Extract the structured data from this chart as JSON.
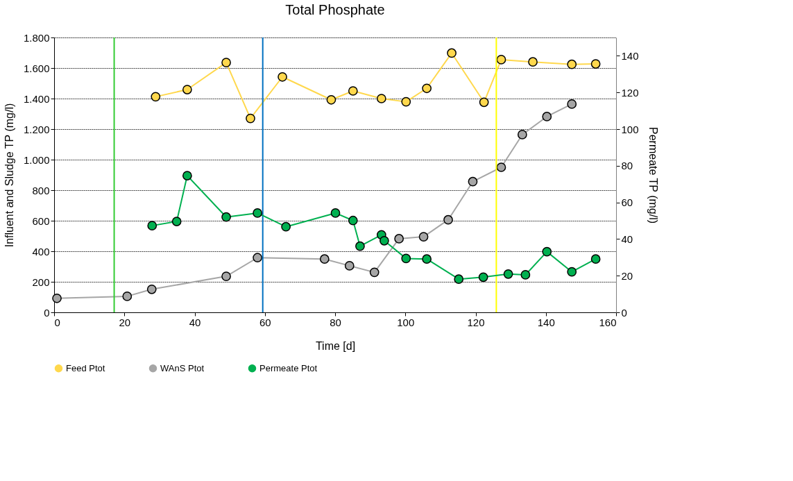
{
  "chart_data": {
    "type": "line",
    "title": "Total Phosphate",
    "xlabel": "Time [d]",
    "ylabel": "Influent and Sludge TP  (mg/l)",
    "y2label": "Permeate TP  (mg/l)",
    "xlim": [
      0,
      160
    ],
    "xticks": [
      0,
      20,
      40,
      60,
      80,
      100,
      120,
      140,
      160
    ],
    "ylim": [
      0,
      1800
    ],
    "yticks": [
      0,
      200,
      400,
      600,
      800,
      {
        "value": 1000,
        "label": "1.000"
      },
      {
        "value": 1200,
        "label": "1.200"
      },
      {
        "value": 1400,
        "label": "1.400"
      },
      {
        "value": 1600,
        "label": "1.600"
      },
      {
        "value": 1800,
        "label": "1.800"
      }
    ],
    "y2lim": [
      0,
      150
    ],
    "y2ticks": [
      0,
      20,
      40,
      60,
      80,
      100,
      120,
      140
    ],
    "grid": "y",
    "legend": "bottom",
    "marker": "circle",
    "line_style": "solid",
    "ref_lines": [
      {
        "axis": "x",
        "value": 17.1,
        "color": "#33cc33"
      },
      {
        "axis": "x",
        "value": 59.4,
        "color": "#0070c0"
      },
      {
        "axis": "x",
        "value": 125.9,
        "color": "#ffff00"
      }
    ],
    "series": [
      {
        "name": "Feed Ptot",
        "color": "#ffd84d",
        "x": [
          28.9,
          37.9,
          49,
          55.9,
          65,
          78.9,
          85.1,
          93.2,
          100.2,
          106.1,
          113.2,
          122.4,
          127.3,
          136.3,
          147.4,
          154.2
        ],
        "values": [
          1412,
          1459,
          1636,
          1270,
          1542,
          1392,
          1450,
          1400,
          1379,
          1467,
          1698,
          1376,
          1655,
          1640,
          1624,
          1627
        ]
      },
      {
        "name": "WAnS Ptot",
        "color": "#a6a6a6",
        "x": [
          0.8,
          20.8,
          27.8,
          49,
          57.9,
          77,
          84.1,
          91.2,
          98.2,
          105.2,
          112.2,
          119.2,
          127.3,
          133.3,
          140.3,
          147.4
        ],
        "values": [
          92,
          105,
          151,
          236,
          358,
          349,
          305,
          262,
          482,
          495,
          606,
          856,
          950,
          1164,
          1282,
          1364
        ]
      },
      {
        "name": "Permeate Ptot",
        "color": "#00b050",
        "axis": "y2",
        "x": [
          27.9,
          34.9,
          37.9,
          49,
          57.9,
          66,
          80.1,
          85.1,
          87.1,
          93.2,
          94,
          100.2,
          106.1,
          115.2,
          122.2,
          129.3,
          134.2,
          140.3,
          147.4,
          154.2
        ],
        "values": [
          47.3,
          49.6,
          74.6,
          52,
          54.2,
          46.7,
          54.2,
          50.1,
          36.1,
          42.3,
          39.1,
          29.4,
          29.1,
          18.1,
          19.2,
          20.9,
          20.5,
          33.1,
          22.1,
          29.1
        ]
      }
    ]
  }
}
